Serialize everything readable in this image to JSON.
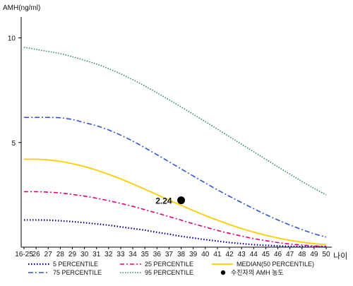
{
  "chart_data": {
    "type": "line",
    "title": "",
    "ylabel": "AMH(ng/ml)",
    "xlabel": "나이",
    "categories": [
      "16-25",
      "26",
      "27",
      "28",
      "29",
      "30",
      "31",
      "32",
      "33",
      "34",
      "35",
      "36",
      "37",
      "38",
      "39",
      "40",
      "41",
      "42",
      "43",
      "44",
      "45",
      "46",
      "47",
      "48",
      "49",
      "50"
    ],
    "y_ticks": [
      5,
      10
    ],
    "ylim": [
      0,
      11
    ],
    "grid": false,
    "series": [
      {
        "name": "5 PERCENTILE",
        "color": "#000080",
        "dash": "1.5,2.5",
        "width": 2.2,
        "values": [
          1.3,
          1.3,
          1.29,
          1.26,
          1.22,
          1.17,
          1.11,
          1.05,
          0.97,
          0.89,
          0.81,
          0.71,
          0.62,
          0.52,
          0.44,
          0.36,
          0.29,
          0.22,
          0.17,
          0.12,
          0.09,
          0.06,
          0.04,
          0.03,
          0.02,
          0.02
        ]
      },
      {
        "name": "25 PERCENTILE",
        "color": "#e0007a",
        "dash": "6,3,2,3",
        "width": 1.6,
        "values": [
          2.65,
          2.65,
          2.63,
          2.59,
          2.52,
          2.44,
          2.34,
          2.22,
          2.09,
          1.95,
          1.79,
          1.63,
          1.46,
          1.29,
          1.12,
          0.96,
          0.8,
          0.66,
          0.53,
          0.41,
          0.31,
          0.22,
          0.15,
          0.1,
          0.06,
          0.04
        ]
      },
      {
        "name": "MEDIAN(50 PERCENTILE)",
        "color": "#ffcc00",
        "dash": "",
        "width": 1.8,
        "values": [
          4.2,
          4.2,
          4.17,
          4.1,
          3.99,
          3.85,
          3.68,
          3.48,
          3.26,
          3.02,
          2.77,
          2.51,
          2.25,
          2.0,
          1.75,
          1.51,
          1.29,
          1.08,
          0.89,
          0.72,
          0.57,
          0.44,
          0.33,
          0.24,
          0.17,
          0.12
        ]
      },
      {
        "name": "75 PERCENTILE",
        "color": "#3355cc",
        "dash": "7,3,2,3",
        "width": 1.6,
        "values": [
          6.2,
          6.2,
          6.2,
          6.18,
          6.1,
          5.95,
          5.8,
          5.6,
          5.35,
          5.07,
          4.75,
          4.42,
          4.08,
          3.74,
          3.4,
          3.07,
          2.74,
          2.43,
          2.13,
          1.84,
          1.56,
          1.3,
          1.06,
          0.84,
          0.64,
          0.48
        ]
      },
      {
        "name": "95 PERCENTILE",
        "color": "#2e8b57",
        "dash": "1.5,2",
        "width": 1.6,
        "values": [
          9.55,
          9.45,
          9.35,
          9.25,
          9.1,
          8.93,
          8.75,
          8.53,
          8.28,
          8.0,
          7.7,
          7.38,
          7.04,
          6.7,
          6.35,
          6.0,
          5.64,
          5.28,
          4.92,
          4.56,
          4.2,
          3.84,
          3.49,
          3.14,
          2.81,
          2.5
        ]
      }
    ],
    "point": {
      "label": "2.24",
      "legend": "수진자의 AMH 농도",
      "x": "38",
      "y": 2.24,
      "color": "#000000"
    },
    "legend": {
      "position": "bottom",
      "items": [
        {
          "series": 0
        },
        {
          "series": 1
        },
        {
          "series": 2
        },
        {
          "series": 3
        },
        {
          "series": 4
        },
        {
          "point": true
        }
      ]
    }
  }
}
